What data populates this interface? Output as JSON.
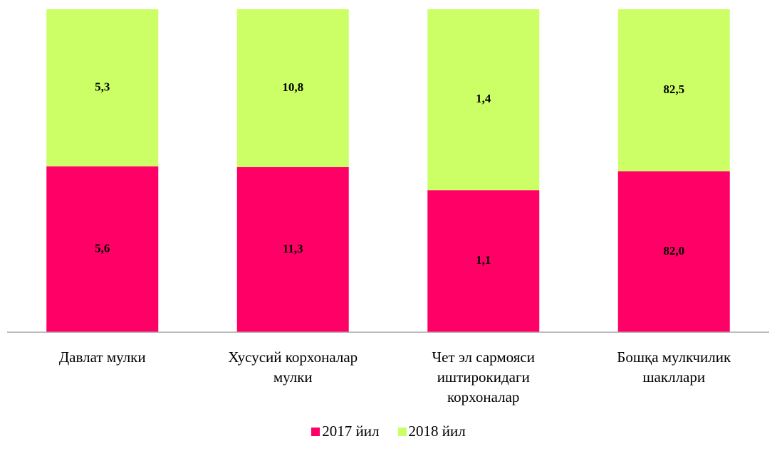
{
  "chart_data": {
    "type": "bar",
    "stacking": "percent",
    "categories": [
      "Давлат мулки",
      "Хусусий корхоналар мулки",
      "Чет эл сармояси иштирокидаги корхоналар",
      "Бошқа мулкчилик шакллари"
    ],
    "series": [
      {
        "name": "2017 йил",
        "color": "#ff0066",
        "values": [
          5.6,
          11.3,
          1.1,
          82.0
        ],
        "value_labels": [
          "5,6",
          "11,3",
          "1,1",
          "82,0"
        ]
      },
      {
        "name": "2018 йил",
        "color": "#ccff66",
        "values": [
          5.3,
          10.8,
          1.4,
          82.5
        ],
        "value_labels": [
          "5,3",
          "10,8",
          "1,4",
          "82,5"
        ]
      }
    ],
    "legend": "bottom"
  }
}
